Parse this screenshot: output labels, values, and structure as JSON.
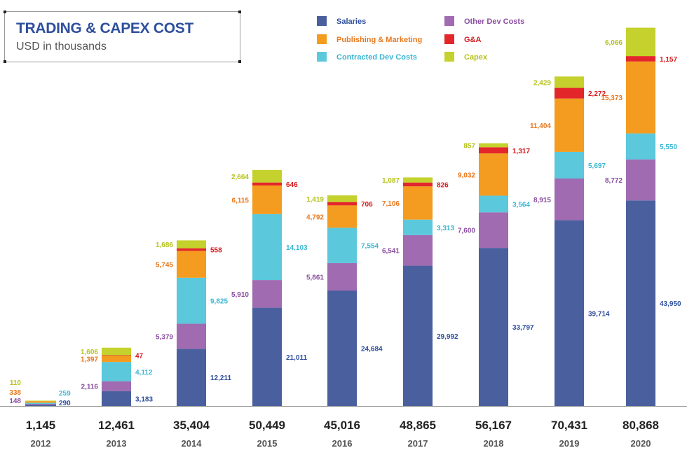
{
  "chart_data": {
    "type": "stacked-bar",
    "title": "TRADING & CAPEX COST",
    "subtitle": "USD in thousands",
    "categories": [
      "2012",
      "2013",
      "2014",
      "2015",
      "2016",
      "2017",
      "2018",
      "2019",
      "2020"
    ],
    "totals": [
      "1,145",
      "12,461",
      "35,404",
      "50,449",
      "45,016",
      "48,865",
      "56,167",
      "70,431",
      "80,868"
    ],
    "series": [
      {
        "name": "Salaries",
        "color": "#4a5f9e",
        "label_color": "#2f4f9e",
        "values": [
          290,
          3183,
          12211,
          21011,
          24684,
          29992,
          33797,
          39714,
          43950
        ]
      },
      {
        "name": "Other Dev Costs",
        "color": "#a06bb0",
        "label_color": "#8a4ea0",
        "values": [
          148,
          2116,
          5379,
          5910,
          5861,
          6541,
          7600,
          8915,
          8772
        ]
      },
      {
        "name": "Contracted Dev Costs",
        "color": "#5bc8dc",
        "label_color": "#3bb7d3",
        "values": [
          259,
          4112,
          9825,
          14103,
          7554,
          3313,
          3564,
          5697,
          5550
        ]
      },
      {
        "name": "Publishing & Marketing",
        "color": "#f39c1f",
        "label_color": "#e8781e",
        "values": [
          338,
          1397,
          5745,
          6115,
          4792,
          7106,
          9032,
          11404,
          15373
        ]
      },
      {
        "name": "G&A",
        "color": "#e3262a",
        "label_color": "#d7191d",
        "values": [
          null,
          47,
          558,
          646,
          706,
          826,
          1317,
          2272,
          1157
        ]
      },
      {
        "name": "Capex",
        "color": "#c5d12c",
        "label_color": "#b5c21c",
        "values": [
          110,
          1606,
          1686,
          2664,
          1419,
          1087,
          857,
          2429,
          6066
        ]
      }
    ],
    "value_labels": {
      "Salaries": [
        "290",
        "3,183",
        "12,211",
        "21,011",
        "24,684",
        "29,992",
        "33,797",
        "39,714",
        "43,950"
      ],
      "Other Dev Costs": [
        "148",
        "2,116",
        "5,379",
        "5,910",
        "5,861",
        "6,541",
        "7,600",
        "8,915",
        "8,772"
      ],
      "Contracted Dev Costs": [
        "259",
        "4,112",
        "9,825",
        "14,103",
        "7,554",
        "3,313",
        "3,564",
        "5,697",
        "5,550"
      ],
      "Publishing & Marketing": [
        "338",
        "1,397",
        "5,745",
        "6,115",
        "4,792",
        "7,106",
        "9,032",
        "11,404",
        "15,373"
      ],
      "G&A": [
        "",
        "47",
        "558",
        "646",
        "706",
        "826",
        "1,317",
        "2,272",
        "1,157"
      ],
      "Capex": [
        "110",
        "1,606",
        "1,686",
        "2,664",
        "1,419",
        "1,087",
        "857",
        "2,429",
        "6,066"
      ]
    },
    "legend": [
      "Salaries",
      "Publishing & Marketing",
      "Contracted Dev Costs",
      "Other Dev Costs",
      "G&A",
      "Capex"
    ],
    "ylim": [
      0,
      82000
    ],
    "grid": false
  }
}
